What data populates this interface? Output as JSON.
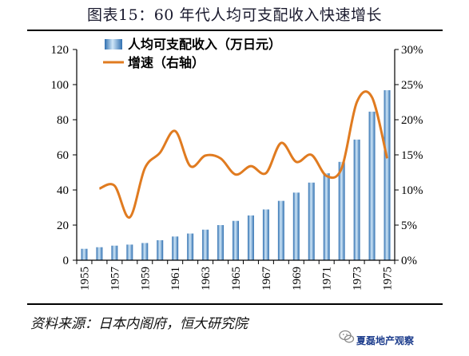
{
  "title": "图表15：60 年代人均可支配收入快速增长",
  "source": "资料来源：日本内阁府，恒大研究院",
  "watermark": "夏磊地产观察",
  "chart_data": {
    "type": "bar+line",
    "x": [
      1955,
      1956,
      1957,
      1958,
      1959,
      1960,
      1961,
      1962,
      1963,
      1964,
      1965,
      1966,
      1967,
      1968,
      1969,
      1970,
      1971,
      1972,
      1973,
      1974,
      1975
    ],
    "x_tick_labels": [
      "1955",
      "1957",
      "1959",
      "1961",
      "1963",
      "1965",
      "1967",
      "1969",
      "1971",
      "1973",
      "1975"
    ],
    "series": [
      {
        "name": "人均可支配收入（万日元）",
        "type": "bar",
        "axis": "left",
        "color": "#6fa8d6",
        "values": [
          6.5,
          7.4,
          8.3,
          8.9,
          9.8,
          11.4,
          13.5,
          15.2,
          17.4,
          20.0,
          22.4,
          25.5,
          28.9,
          33.8,
          38.5,
          44.2,
          49.5,
          56.0,
          68.7,
          84.6,
          96.8
        ]
      },
      {
        "name": "增速（右轴）",
        "type": "line",
        "axis": "right",
        "color": "#e07b20",
        "values": [
          null,
          10.2,
          10.6,
          6.1,
          13.1,
          15.3,
          18.4,
          13.4,
          14.9,
          14.5,
          12.2,
          13.4,
          12.4,
          16.7,
          14.0,
          15.0,
          12.0,
          13.1,
          22.5,
          23.2,
          14.5
        ]
      }
    ],
    "left_axis": {
      "ylim": [
        0,
        120
      ],
      "ticks": [
        "0",
        "20",
        "40",
        "60",
        "80",
        "100",
        "120"
      ]
    },
    "right_axis": {
      "ylim": [
        0,
        30
      ],
      "ticks": [
        "0%",
        "5%",
        "10%",
        "15%",
        "20%",
        "25%",
        "30%"
      ]
    },
    "grid": false,
    "legend": "top-left"
  }
}
